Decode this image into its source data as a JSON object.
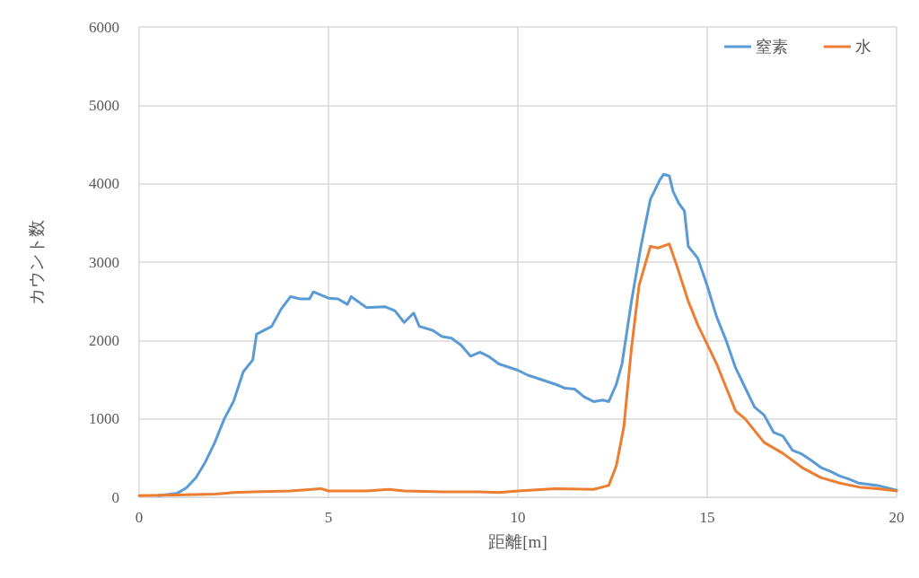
{
  "chart_data": {
    "type": "line",
    "xlabel": "距離[m]",
    "ylabel": "カウント数",
    "xlim": [
      0,
      20
    ],
    "xticks": [
      0,
      5,
      10,
      15,
      20
    ],
    "ylim": [
      0,
      6000
    ],
    "yticks": [
      0,
      1000,
      2000,
      3000,
      4000,
      5000,
      6000
    ],
    "grid": true,
    "legend": "top right",
    "marker": "none",
    "line_style": "solid",
    "series": [
      {
        "name": "窒素",
        "color": "#5b9bd5",
        "x": [
          0.5,
          1,
          1.25,
          1.5,
          1.75,
          2,
          2.25,
          2.5,
          2.75,
          3,
          3.1,
          3.5,
          3.75,
          4,
          4.25,
          4.5,
          4.6,
          5,
          5.25,
          5.5,
          5.6,
          6,
          6.5,
          6.75,
          7,
          7.25,
          7.4,
          7.75,
          8,
          8.25,
          8.5,
          8.75,
          9,
          9.25,
          9.5,
          10,
          10.25,
          10.5,
          11,
          11.25,
          11.5,
          11.75,
          12,
          12.25,
          12.4,
          12.6,
          12.75,
          13,
          13.25,
          13.5,
          13.75,
          13.85,
          14,
          14.1,
          14.25,
          14.4,
          14.5,
          14.75,
          15,
          15.25,
          15.5,
          15.75,
          16,
          16.25,
          16.5,
          16.75,
          17,
          17.25,
          17.5,
          17.75,
          18,
          18.25,
          18.5,
          18.75,
          19,
          19.5,
          20
        ],
        "values": [
          20,
          50,
          120,
          250,
          450,
          700,
          1000,
          1230,
          1600,
          1750,
          2080,
          2180,
          2400,
          2560,
          2530,
          2530,
          2620,
          2540,
          2530,
          2460,
          2560,
          2420,
          2430,
          2380,
          2230,
          2350,
          2180,
          2130,
          2050,
          2030,
          1940,
          1800,
          1850,
          1790,
          1700,
          1620,
          1560,
          1520,
          1440,
          1390,
          1380,
          1280,
          1220,
          1240,
          1220,
          1440,
          1700,
          2500,
          3200,
          3800,
          4050,
          4120,
          4100,
          3900,
          3750,
          3650,
          3200,
          3050,
          2700,
          2300,
          2000,
          1650,
          1400,
          1150,
          1050,
          830,
          780,
          600,
          550,
          470,
          380,
          330,
          270,
          230,
          180,
          150,
          90
        ]
      },
      {
        "name": "水",
        "color": "#ed7d31",
        "x": [
          0,
          1,
          2,
          2.5,
          3,
          4,
          4.8,
          5,
          6,
          6.6,
          7,
          8,
          9,
          9.5,
          10,
          11,
          12,
          12.4,
          12.6,
          12.8,
          13,
          13.2,
          13.5,
          13.7,
          14,
          14.2,
          14.5,
          14.75,
          15,
          15.25,
          15.5,
          15.75,
          16,
          16.5,
          17,
          17.5,
          18,
          18.5,
          19,
          19.5,
          20
        ],
        "values": [
          20,
          30,
          40,
          60,
          70,
          80,
          110,
          80,
          80,
          100,
          80,
          70,
          70,
          60,
          80,
          110,
          100,
          150,
          400,
          900,
          1900,
          2700,
          3200,
          3180,
          3230,
          2950,
          2500,
          2200,
          1950,
          1700,
          1400,
          1100,
          1000,
          700,
          560,
          380,
          250,
          180,
          130,
          110,
          80
        ]
      }
    ]
  }
}
